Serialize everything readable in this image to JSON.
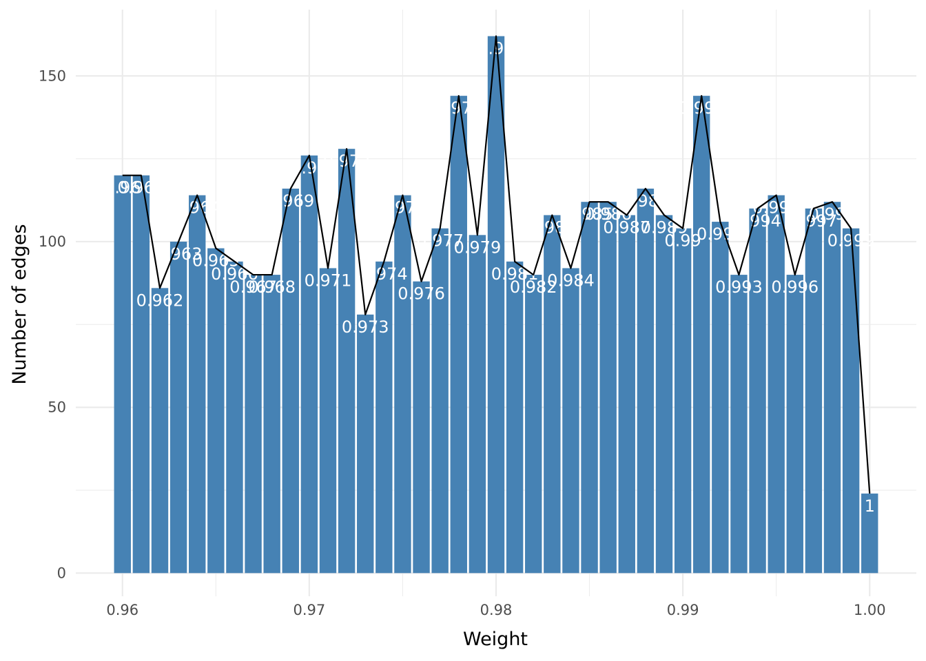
{
  "chart_data": {
    "type": "bar",
    "xlabel": "Weight",
    "ylabel": "Number of edges",
    "xlim": [
      0.9575,
      1.0025
    ],
    "ylim": [
      -7,
      170
    ],
    "x_ticks": [
      {
        "value": 0.96,
        "label": "0.96"
      },
      {
        "value": 0.97,
        "label": "0.97"
      },
      {
        "value": 0.98,
        "label": "0.98"
      },
      {
        "value": 0.99,
        "label": "0.99"
      },
      {
        "value": 1.0,
        "label": "1.00"
      }
    ],
    "y_ticks": [
      {
        "value": 0,
        "label": "0"
      },
      {
        "value": 50,
        "label": "50"
      },
      {
        "value": 100,
        "label": "100"
      },
      {
        "value": 150,
        "label": "150"
      }
    ],
    "minor_x": [
      0.965,
      0.975,
      0.985,
      0.995
    ],
    "minor_y": [
      25,
      75,
      125
    ],
    "grid": true,
    "bar_width": 0.0009,
    "bar_color": "#4682b4",
    "line_color": "#000000",
    "gridline_color": "#ebebeb",
    "x": [
      0.96,
      0.961,
      0.962,
      0.963,
      0.964,
      0.965,
      0.966,
      0.967,
      0.968,
      0.969,
      0.97,
      0.971,
      0.972,
      0.973,
      0.974,
      0.975,
      0.976,
      0.977,
      0.978,
      0.979,
      0.98,
      0.981,
      0.982,
      0.983,
      0.984,
      0.985,
      0.986,
      0.987,
      0.988,
      0.989,
      0.99,
      0.991,
      0.992,
      0.993,
      0.994,
      0.995,
      0.996,
      0.997,
      0.998,
      0.999,
      1.0
    ],
    "values": [
      120,
      120,
      86,
      100,
      114,
      98,
      94,
      90,
      90,
      116,
      126,
      92,
      128,
      78,
      94,
      114,
      88,
      104,
      144,
      102,
      162,
      94,
      90,
      108,
      92,
      112,
      112,
      108,
      116,
      108,
      104,
      144,
      106,
      90,
      110,
      114,
      90,
      110,
      112,
      104,
      24
    ],
    "labels": [
      "0.96",
      "0.961",
      "0.962",
      "0.963",
      "0.964",
      "0.965",
      "0.966",
      "0.967",
      "0.968",
      "0.969",
      "0.97",
      "0.971",
      "0.972",
      "0.973",
      "0.974",
      "0.975",
      "0.976",
      "0.977",
      "0.978",
      "0.979",
      "0.98",
      "0.981",
      "0.982",
      "0.983",
      "0.984",
      "0.985",
      "0.986",
      "0.987",
      "0.988",
      "0.989",
      "0.99",
      "0.991",
      "0.992",
      "0.993",
      "0.994",
      "0.995",
      "0.996",
      "0.997",
      "0.998",
      "0.999",
      "1"
    ]
  }
}
